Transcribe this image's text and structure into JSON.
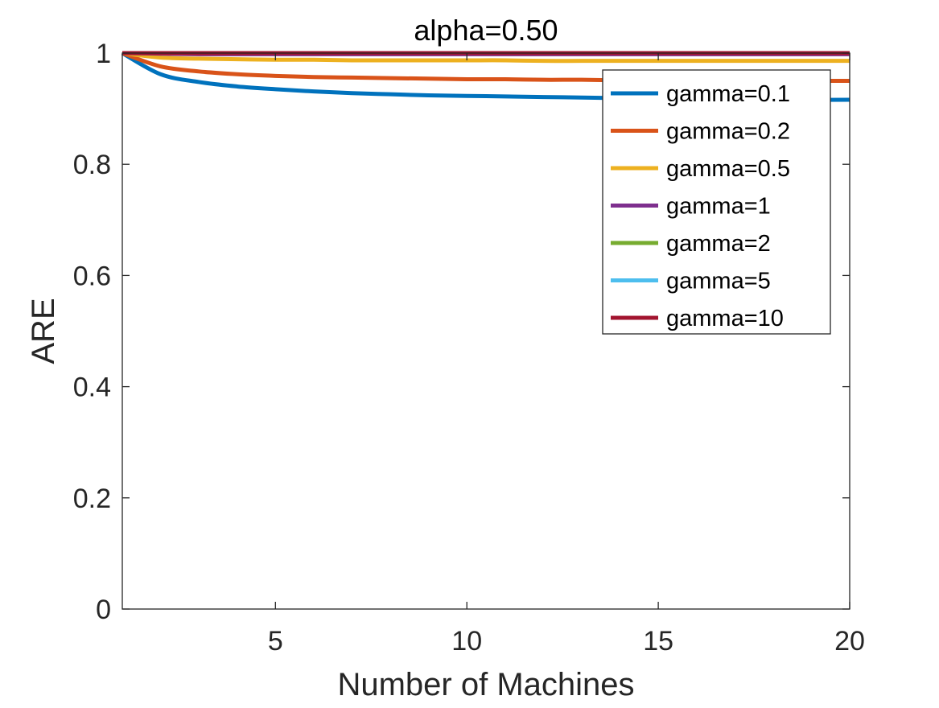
{
  "chart_data": {
    "type": "line",
    "title": "alpha=0.50",
    "xlabel": "Number of Machines",
    "ylabel": "ARE",
    "xlim": [
      1,
      20
    ],
    "ylim": [
      0,
      1
    ],
    "xticks": [
      5,
      10,
      15,
      20
    ],
    "xtick_labels": [
      "5",
      "10",
      "15",
      "20"
    ],
    "yticks": [
      0,
      0.2,
      0.4,
      0.6,
      0.8,
      1
    ],
    "ytick_labels": [
      "0",
      "0.2",
      "0.4",
      "0.6",
      "0.8",
      "1"
    ],
    "grid": false,
    "legend_position": "top-right",
    "x": [
      1,
      2,
      3,
      4,
      5,
      6,
      7,
      8,
      9,
      10,
      11,
      12,
      13,
      14,
      15,
      16,
      17,
      18,
      19,
      20
    ],
    "series": [
      {
        "name": "gamma=0.1",
        "color": "#0072BD",
        "values": [
          1.0,
          0.962,
          0.948,
          0.94,
          0.935,
          0.931,
          0.928,
          0.926,
          0.924,
          0.923,
          0.922,
          0.921,
          0.92,
          0.919,
          0.918,
          0.918,
          0.917,
          0.917,
          0.916,
          0.916
        ]
      },
      {
        "name": "gamma=0.2",
        "color": "#D95319",
        "values": [
          1.0,
          0.976,
          0.967,
          0.962,
          0.959,
          0.957,
          0.956,
          0.955,
          0.954,
          0.953,
          0.953,
          0.952,
          0.952,
          0.951,
          0.951,
          0.951,
          0.95,
          0.95,
          0.95,
          0.95
        ]
      },
      {
        "name": "gamma=0.5",
        "color": "#EDB120",
        "values": [
          1.0,
          0.992,
          0.99,
          0.989,
          0.988,
          0.988,
          0.987,
          0.987,
          0.987,
          0.987,
          0.987,
          0.986,
          0.986,
          0.986,
          0.986,
          0.986,
          0.986,
          0.986,
          0.986,
          0.986
        ]
      },
      {
        "name": "gamma=1",
        "color": "#7E2F8E",
        "values": [
          1.0,
          0.999,
          0.998,
          0.998,
          0.998,
          0.998,
          0.998,
          0.998,
          0.998,
          0.998,
          0.998,
          0.998,
          0.998,
          0.998,
          0.998,
          0.998,
          0.998,
          0.998,
          0.998,
          0.998
        ]
      },
      {
        "name": "gamma=2",
        "color": "#77AC30",
        "values": [
          1.0,
          1.0,
          1.0,
          1.0,
          1.0,
          1.0,
          1.0,
          1.0,
          1.0,
          1.0,
          1.0,
          1.0,
          1.0,
          1.0,
          1.0,
          1.0,
          1.0,
          1.0,
          1.0,
          1.0
        ]
      },
      {
        "name": "gamma=5",
        "color": "#4DBEEE",
        "values": [
          1.0,
          1.0,
          1.0,
          1.0,
          1.0,
          1.0,
          1.0,
          1.0,
          1.0,
          1.0,
          1.0,
          1.0,
          1.0,
          1.0,
          1.0,
          1.0,
          1.0,
          1.0,
          1.0,
          1.0
        ]
      },
      {
        "name": "gamma=10",
        "color": "#A2142F",
        "values": [
          1.0,
          1.0,
          1.0,
          1.0,
          1.0,
          1.0,
          1.0,
          1.0,
          1.0,
          1.0,
          1.0,
          1.0,
          1.0,
          1.0,
          1.0,
          1.0,
          1.0,
          1.0,
          1.0,
          1.0
        ]
      }
    ]
  }
}
